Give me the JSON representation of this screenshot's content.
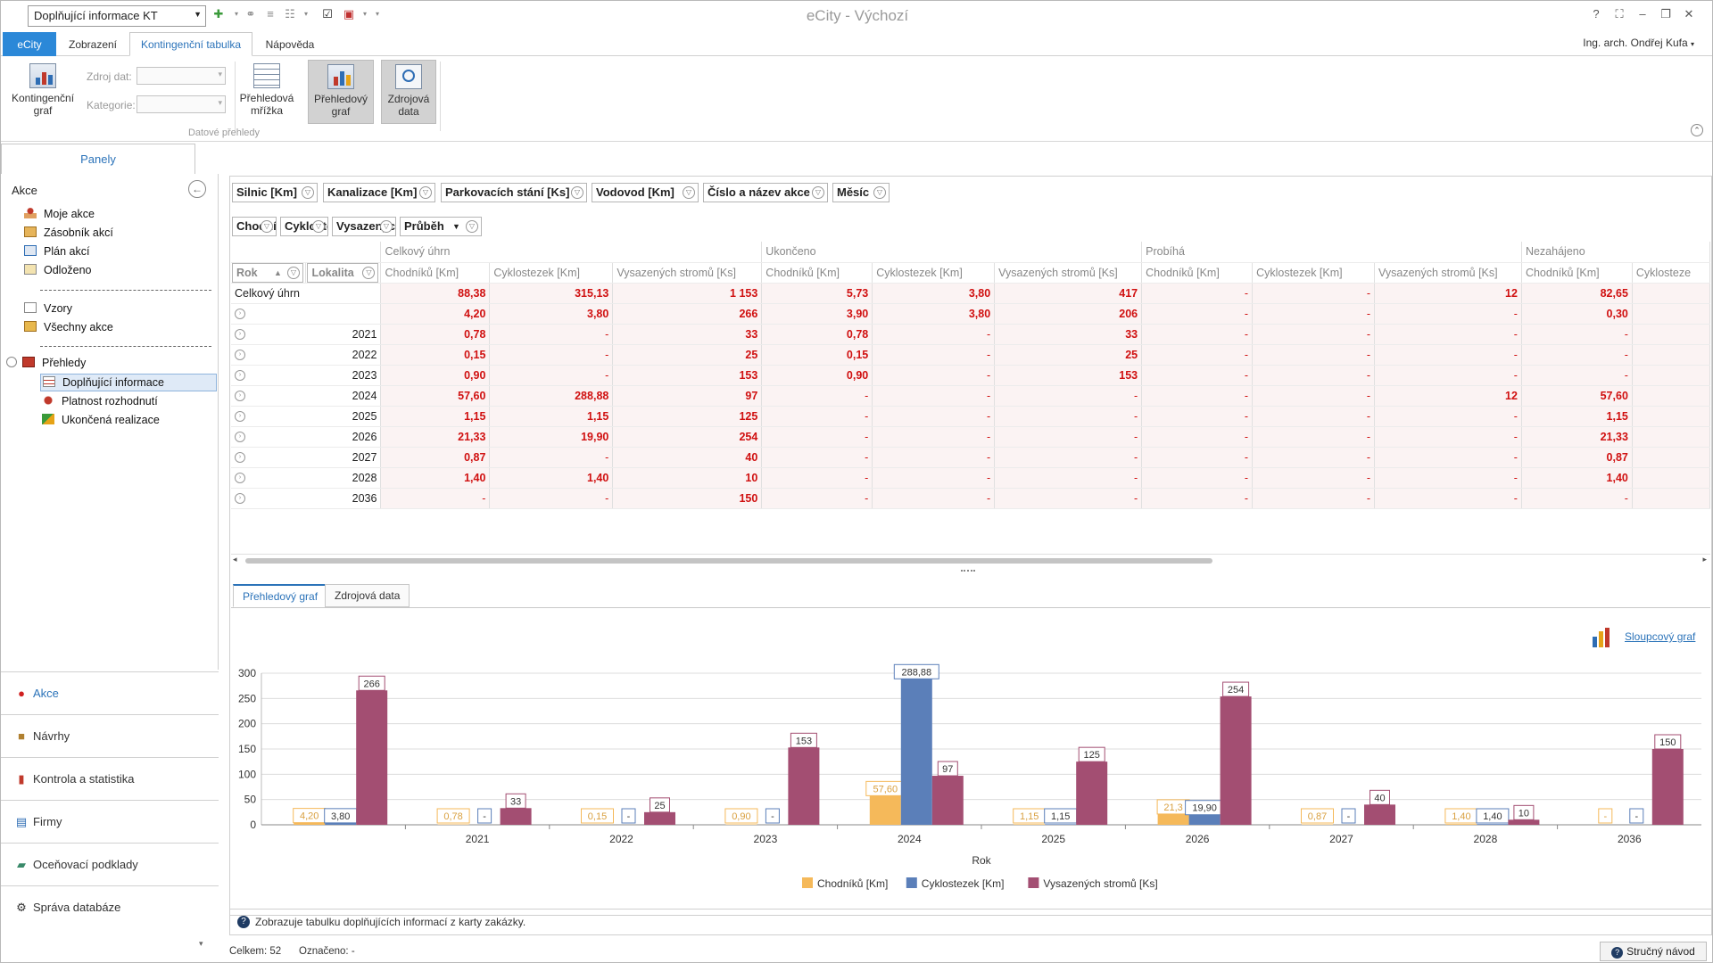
{
  "titlebar": {
    "doc_selector": "Doplňující informace KT",
    "app_title": "eCity - Výchozí",
    "help": "?",
    "minimize": "–",
    "restore": "❐",
    "close": "✕"
  },
  "ribbon_tabs": [
    "eCity",
    "Zobrazení",
    "Kontingenční tabulka",
    "Nápověda"
  ],
  "user": "Ing. arch. Ondřej Kufa",
  "ribbon": {
    "btn_kontingencni": "Kontingenční graf",
    "zdroj_dat_label": "Zdroj dat:",
    "kategorie_label": "Kategorie:",
    "btn_prehledova_mrizka": "Přehledová mřížka",
    "btn_prehledovy_graf": "Přehledový graf",
    "btn_zdrojova_data": "Zdrojová data",
    "group_label": "Datové přehledy"
  },
  "left": {
    "panels_tab": "Panely",
    "section_title": "Akce",
    "items": [
      "Moje akce",
      "Zásobník akcí",
      "Plán akcí",
      "Odloženo"
    ],
    "items2": [
      "Vzory",
      "Všechny akce"
    ],
    "prehledy": "Přehledy",
    "sub_items": [
      "Doplňující informace",
      "Platnost rozhodnutí",
      "Ukončená realizace"
    ],
    "nav": [
      "Akce",
      "Návrhy",
      "Kontrola a statistika",
      "Firmy",
      "Oceňovací podklady",
      "Správa databáze"
    ]
  },
  "filters": {
    "row1": [
      "Silnic [Km]",
      "Kanalizace [Km]",
      "Parkovacích stání [Ks]",
      "Vodovod [Km]",
      "Číslo a název akce",
      "Měsíc"
    ],
    "row2": [
      "Chodníků [Km]",
      "Cyklostezek [Km]",
      "Vysazených stromů [Ks]",
      "Průběh"
    ],
    "row_fields": [
      "Rok",
      "Lokalita"
    ]
  },
  "pivot": {
    "groups": [
      "Celkový úhrn",
      "Ukončeno",
      "Probíhá",
      "Nezahájeno"
    ],
    "measures": [
      "Chodníků [Km]",
      "Cyklostezek [Km]",
      "Vysazených stromů [Ks]",
      "Chodníků [Km]",
      "Cyklostezek [Km]",
      "Vysazených stromů [Ks]",
      "Chodníků [Km]",
      "Cyklostezek [Km]",
      "Vysazených stromů [Ks]",
      "Chodníků [Km]",
      "Cyklosteze"
    ],
    "rows": [
      {
        "label": "Celkový úhrn",
        "values": [
          "88,38",
          "315,13",
          "1 153",
          "5,73",
          "3,80",
          "417",
          "-",
          "-",
          "12",
          "82,65",
          ""
        ]
      },
      {
        "label": "",
        "values": [
          "4,20",
          "3,80",
          "266",
          "3,90",
          "3,80",
          "206",
          "-",
          "-",
          "-",
          "0,30",
          ""
        ]
      },
      {
        "label": "2021",
        "values": [
          "0,78",
          "-",
          "33",
          "0,78",
          "-",
          "33",
          "-",
          "-",
          "-",
          "-",
          ""
        ]
      },
      {
        "label": "2022",
        "values": [
          "0,15",
          "-",
          "25",
          "0,15",
          "-",
          "25",
          "-",
          "-",
          "-",
          "-",
          ""
        ]
      },
      {
        "label": "2023",
        "values": [
          "0,90",
          "-",
          "153",
          "0,90",
          "-",
          "153",
          "-",
          "-",
          "-",
          "-",
          ""
        ]
      },
      {
        "label": "2024",
        "values": [
          "57,60",
          "288,88",
          "97",
          "-",
          "-",
          "-",
          "-",
          "-",
          "12",
          "57,60",
          ""
        ]
      },
      {
        "label": "2025",
        "values": [
          "1,15",
          "1,15",
          "125",
          "-",
          "-",
          "-",
          "-",
          "-",
          "-",
          "1,15",
          ""
        ]
      },
      {
        "label": "2026",
        "values": [
          "21,33",
          "19,90",
          "254",
          "-",
          "-",
          "-",
          "-",
          "-",
          "-",
          "21,33",
          ""
        ]
      },
      {
        "label": "2027",
        "values": [
          "0,87",
          "-",
          "40",
          "-",
          "-",
          "-",
          "-",
          "-",
          "-",
          "0,87",
          ""
        ]
      },
      {
        "label": "2028",
        "values": [
          "1,40",
          "1,40",
          "10",
          "-",
          "-",
          "-",
          "-",
          "-",
          "-",
          "1,40",
          ""
        ]
      },
      {
        "label": "2036",
        "values": [
          "-",
          "-",
          "150",
          "-",
          "-",
          "-",
          "-",
          "-",
          "-",
          "-",
          ""
        ]
      }
    ]
  },
  "chart_tabs": [
    "Přehledový graf",
    "Zdrojová data"
  ],
  "chart_type_link": "Sloupcový graf",
  "chart_data": {
    "type": "bar",
    "categories": [
      "",
      "2021",
      "2022",
      "2023",
      "2024",
      "2025",
      "2026",
      "2027",
      "2028",
      "2036"
    ],
    "series": [
      {
        "name": "Chodníků [Km]",
        "color": "#f5b95a",
        "values": [
          4.2,
          0.78,
          0.15,
          0.9,
          57.6,
          1.15,
          21.33,
          0.87,
          1.4,
          0
        ],
        "labels": [
          "4,20",
          "0,78",
          "0,15",
          "0,90",
          "57,60",
          "1,15",
          "21,3",
          "0,87",
          "1,40",
          "-"
        ]
      },
      {
        "name": "Cyklostezek [Km]",
        "color": "#5b7fb9",
        "values": [
          3.8,
          0,
          0,
          0,
          288.88,
          1.15,
          19.9,
          0,
          1.4,
          0
        ],
        "labels": [
          "3,80",
          "-",
          "-",
          "-",
          "288,88",
          "1,15",
          "19,90",
          "-",
          "1,40",
          "-"
        ]
      },
      {
        "name": "Vysazených stromů [Ks]",
        "color": "#a34e72",
        "values": [
          266,
          33,
          25,
          153,
          97,
          125,
          254,
          40,
          10,
          150
        ],
        "labels": [
          "266",
          "33",
          "25",
          "153",
          "97",
          "125",
          "254",
          "40",
          "10",
          "150"
        ]
      }
    ],
    "xlabel": "Rok",
    "ylabel": "",
    "ylim": [
      0,
      300
    ],
    "yticks": [
      0,
      50,
      100,
      150,
      200,
      250,
      300
    ],
    "grid": true,
    "legend": "bottom"
  },
  "info_text": "Zobrazuje tabulku doplňujících informací z karty zakázky.",
  "status": {
    "celkem": "Celkem: 52",
    "oznaceno": "Označeno: -",
    "help_button": "Stručný návod"
  }
}
